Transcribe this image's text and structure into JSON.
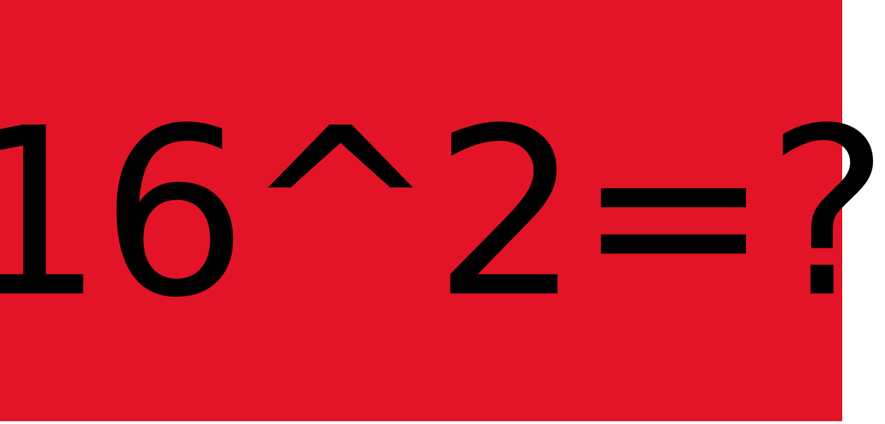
{
  "puzzle": {
    "expression": "16^2=?",
    "background_color": "#e31427",
    "text_color": "#000000"
  }
}
